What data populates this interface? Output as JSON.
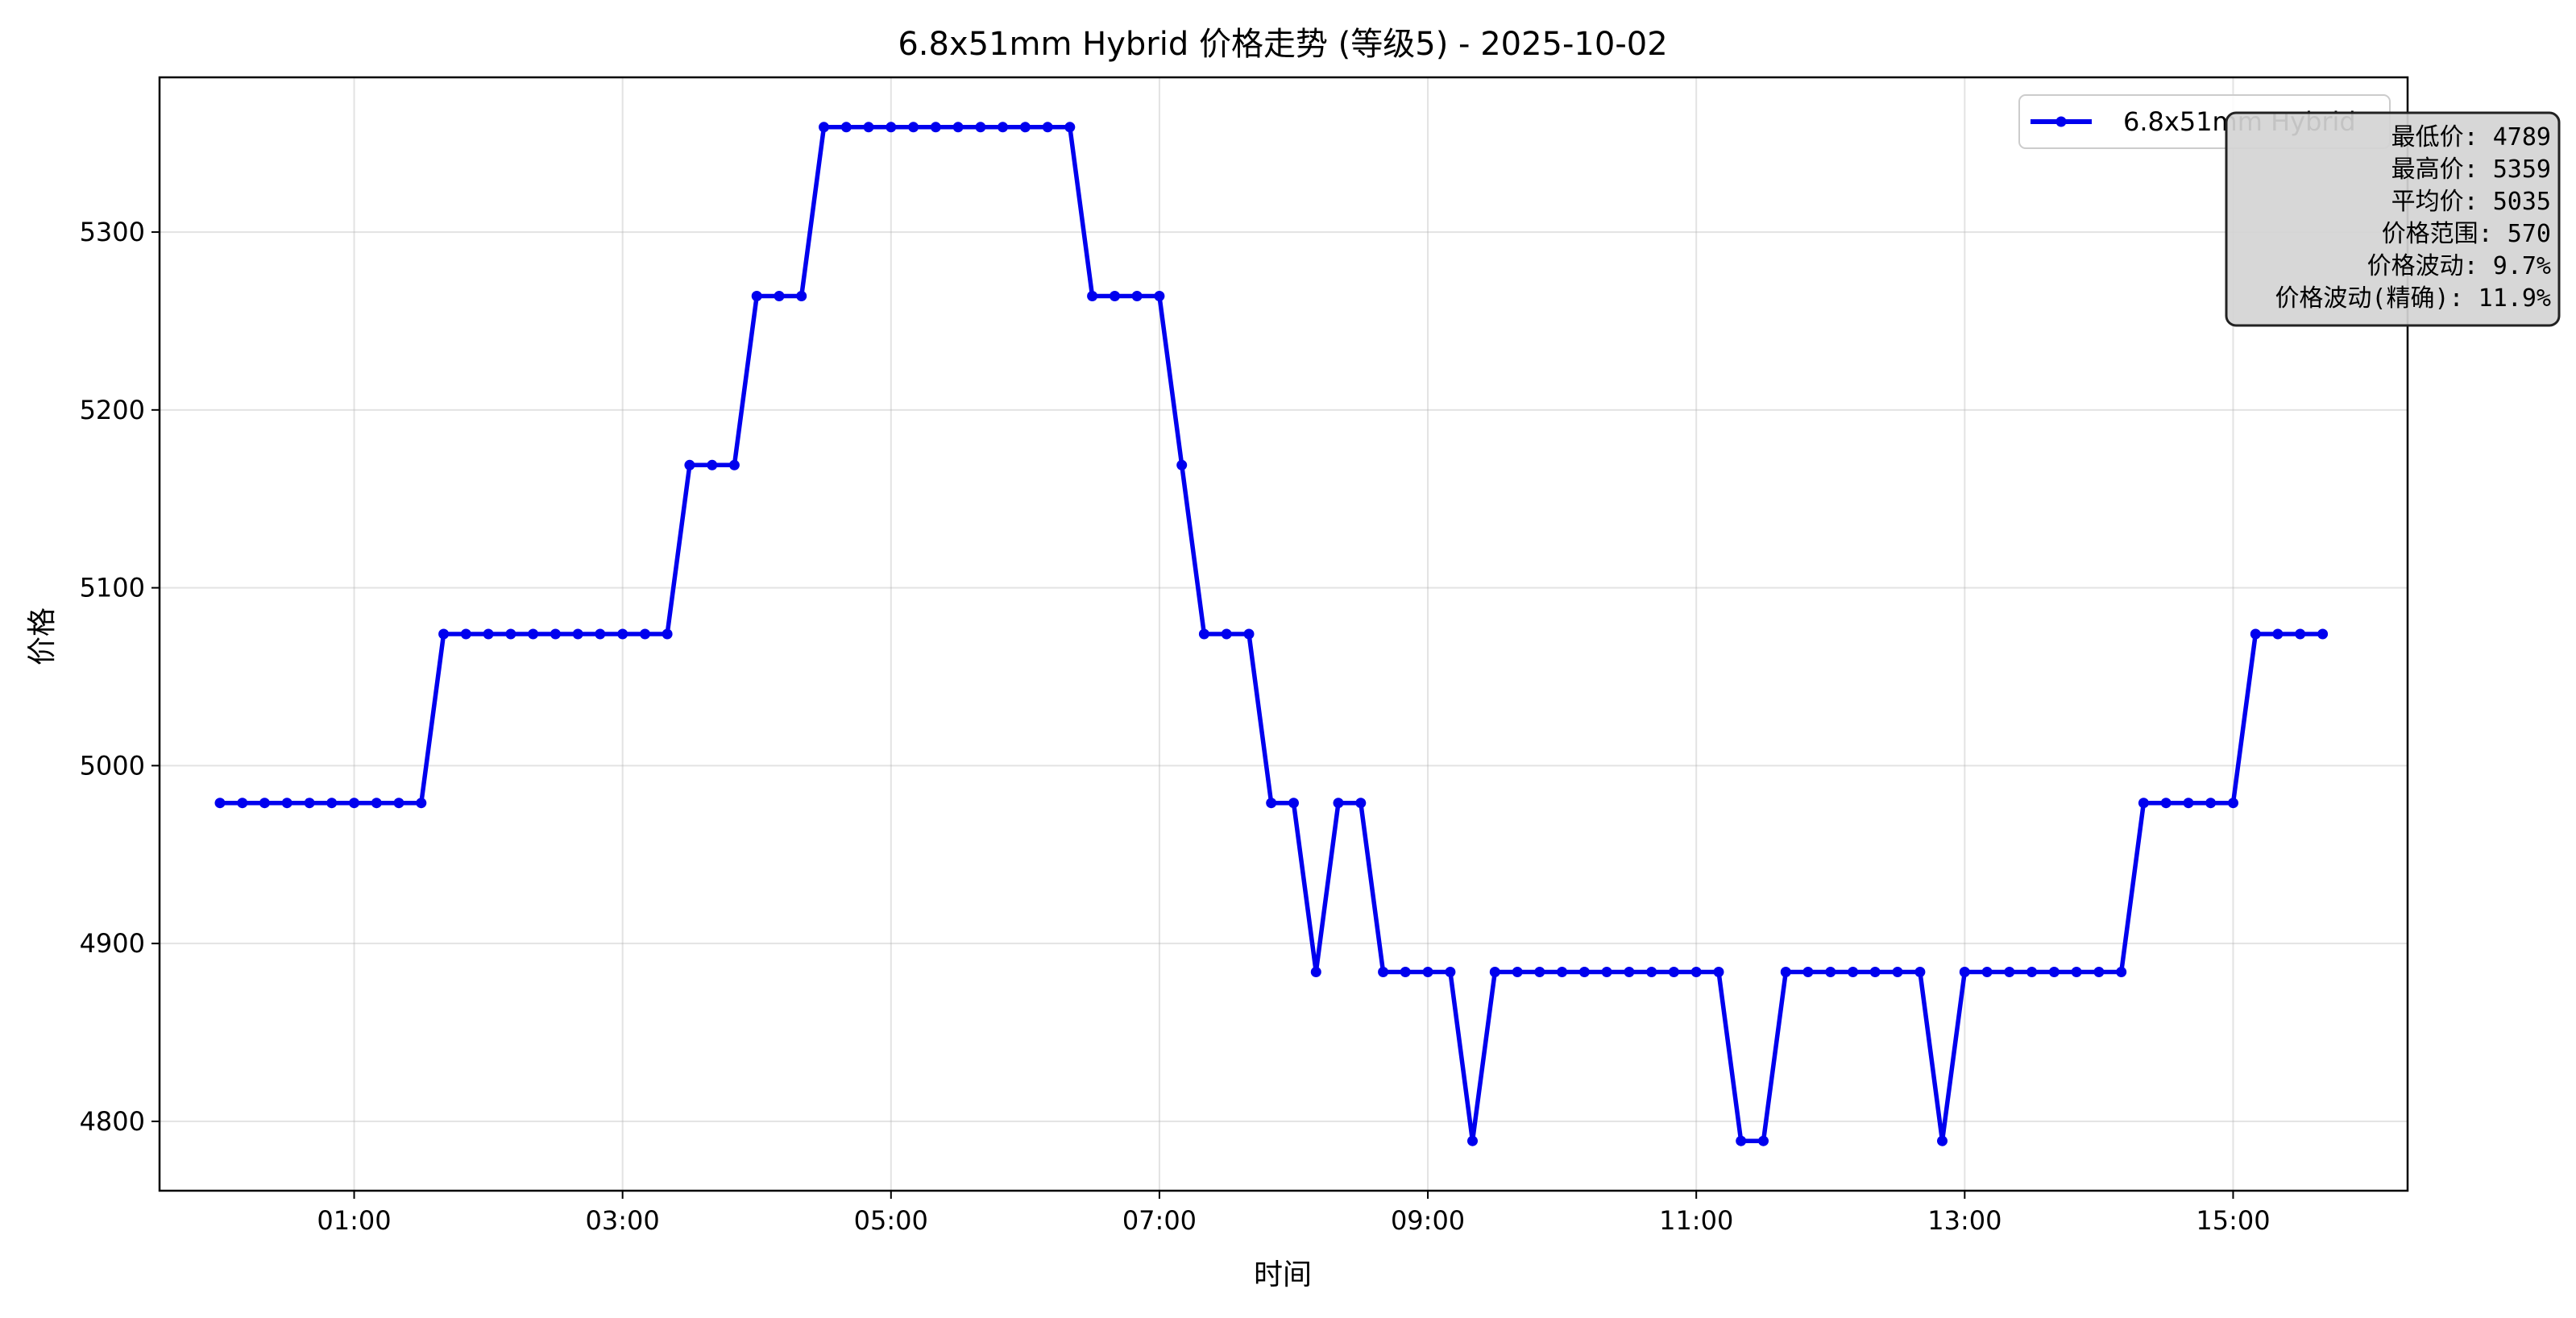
{
  "chart_data": {
    "type": "line",
    "title": "6.8x51mm Hybrid 价格走势 (等级5) - 2025-10-02",
    "xlabel": "时间",
    "ylabel": "价格",
    "x_unit": "hour",
    "xlim": [
      -0.45,
      16.3
    ],
    "ylim": [
      4761,
      5387
    ],
    "x_ticks": [
      1,
      3,
      5,
      7,
      9,
      11,
      13,
      15
    ],
    "x_tick_labels": [
      "01:00",
      "03:00",
      "05:00",
      "07:00",
      "09:00",
      "11:00",
      "13:00",
      "15:00"
    ],
    "y_ticks": [
      4800,
      4900,
      5000,
      5100,
      5200,
      5300
    ],
    "y_tick_labels": [
      "4800",
      "4900",
      "5000",
      "5100",
      "5200",
      "5300"
    ],
    "grid": true,
    "legend_position": "top-right",
    "series": [
      {
        "name": "6.8x51mm Hybrid",
        "color": "#0000ee",
        "marker": "circle",
        "points": [
          [
            0.0,
            4979
          ],
          [
            0.167,
            4979
          ],
          [
            0.333,
            4979
          ],
          [
            0.5,
            4979
          ],
          [
            0.667,
            4979
          ],
          [
            0.833,
            4979
          ],
          [
            1.0,
            4979
          ],
          [
            1.167,
            4979
          ],
          [
            1.333,
            4979
          ],
          [
            1.5,
            4979
          ],
          [
            1.667,
            5074
          ],
          [
            1.833,
            5074
          ],
          [
            2.0,
            5074
          ],
          [
            2.167,
            5074
          ],
          [
            2.333,
            5074
          ],
          [
            2.5,
            5074
          ],
          [
            2.667,
            5074
          ],
          [
            2.833,
            5074
          ],
          [
            3.0,
            5074
          ],
          [
            3.167,
            5074
          ],
          [
            3.333,
            5074
          ],
          [
            3.5,
            5169
          ],
          [
            3.667,
            5169
          ],
          [
            3.833,
            5169
          ],
          [
            4.0,
            5264
          ],
          [
            4.167,
            5264
          ],
          [
            4.333,
            5264
          ],
          [
            4.5,
            5359
          ],
          [
            4.667,
            5359
          ],
          [
            4.833,
            5359
          ],
          [
            5.0,
            5359
          ],
          [
            5.167,
            5359
          ],
          [
            5.333,
            5359
          ],
          [
            5.5,
            5359
          ],
          [
            5.667,
            5359
          ],
          [
            5.833,
            5359
          ],
          [
            6.0,
            5359
          ],
          [
            6.167,
            5359
          ],
          [
            6.333,
            5359
          ],
          [
            6.5,
            5264
          ],
          [
            6.667,
            5264
          ],
          [
            6.833,
            5264
          ],
          [
            7.0,
            5264
          ],
          [
            7.167,
            5169
          ],
          [
            7.333,
            5074
          ],
          [
            7.5,
            5074
          ],
          [
            7.667,
            5074
          ],
          [
            7.833,
            4979
          ],
          [
            8.0,
            4979
          ],
          [
            8.167,
            4884
          ],
          [
            8.333,
            4979
          ],
          [
            8.5,
            4979
          ],
          [
            8.667,
            4884
          ],
          [
            8.833,
            4884
          ],
          [
            9.0,
            4884
          ],
          [
            9.167,
            4884
          ],
          [
            9.333,
            4789
          ],
          [
            9.5,
            4884
          ],
          [
            9.667,
            4884
          ],
          [
            9.833,
            4884
          ],
          [
            10.0,
            4884
          ],
          [
            10.167,
            4884
          ],
          [
            10.333,
            4884
          ],
          [
            10.5,
            4884
          ],
          [
            10.667,
            4884
          ],
          [
            10.833,
            4884
          ],
          [
            11.0,
            4884
          ],
          [
            11.167,
            4884
          ],
          [
            11.333,
            4789
          ],
          [
            11.5,
            4789
          ],
          [
            11.667,
            4884
          ],
          [
            11.833,
            4884
          ],
          [
            12.0,
            4884
          ],
          [
            12.167,
            4884
          ],
          [
            12.333,
            4884
          ],
          [
            12.5,
            4884
          ],
          [
            12.667,
            4884
          ],
          [
            12.833,
            4789
          ],
          [
            13.0,
            4884
          ],
          [
            13.167,
            4884
          ],
          [
            13.333,
            4884
          ],
          [
            13.5,
            4884
          ],
          [
            13.667,
            4884
          ],
          [
            13.833,
            4884
          ],
          [
            14.0,
            4884
          ],
          [
            14.167,
            4884
          ],
          [
            14.333,
            4979
          ],
          [
            14.5,
            4979
          ],
          [
            14.667,
            4979
          ],
          [
            14.833,
            4979
          ],
          [
            15.0,
            4979
          ],
          [
            15.167,
            5074
          ],
          [
            15.333,
            5074
          ],
          [
            15.5,
            5074
          ],
          [
            15.667,
            5074
          ]
        ]
      }
    ],
    "stats_box": [
      "最低价: 4789",
      "最高价: 5359",
      "平均价: 5035",
      "价格范围: 570",
      "价格波动: 9.7%",
      "价格波动(精确): 11.9%"
    ]
  }
}
